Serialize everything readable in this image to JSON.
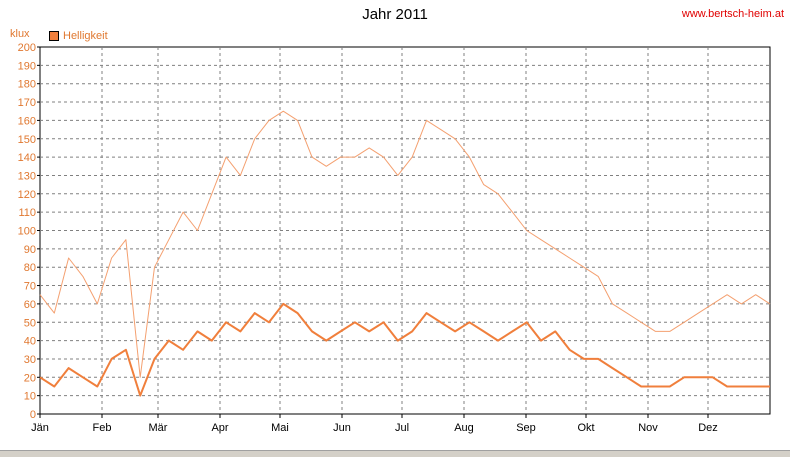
{
  "chart_data": {
    "type": "line",
    "title": "Jahr 2011",
    "site": "www.bertsch-heim.at",
    "unit": "klux",
    "legend": [
      "Helligkeit"
    ],
    "ylim": [
      0,
      200
    ],
    "ytick_step": 10,
    "grid": true,
    "legend_position": "top-left",
    "colors": {
      "series": "#f07f3c",
      "series_max": "#f4a070",
      "tick_labels_y": "#e07830",
      "grid": "#808080"
    },
    "months": [
      "Jän",
      "Feb",
      "Mär",
      "Apr",
      "Mai",
      "Jun",
      "Jul",
      "Aug",
      "Sep",
      "Okt",
      "Nov",
      "Dez"
    ],
    "month_starts": [
      1,
      32,
      60,
      91,
      121,
      152,
      182,
      213,
      244,
      274,
      305,
      335
    ],
    "days_in_year": 365,
    "series": [
      {
        "name": "Helligkeit",
        "role": "daily_max",
        "x_weeks": [
          1,
          2,
          3,
          4,
          5,
          6,
          7,
          8,
          9,
          10,
          11,
          12,
          13,
          14,
          15,
          16,
          17,
          18,
          19,
          20,
          21,
          22,
          23,
          24,
          25,
          26,
          27,
          28,
          29,
          30,
          31,
          32,
          33,
          34,
          35,
          36,
          37,
          38,
          39,
          40,
          41,
          42,
          43,
          44,
          45,
          46,
          47,
          48,
          49,
          50,
          51,
          52
        ],
        "values": [
          65,
          55,
          85,
          75,
          60,
          85,
          95,
          20,
          80,
          95,
          110,
          100,
          120,
          140,
          130,
          150,
          160,
          165,
          160,
          140,
          135,
          140,
          140,
          145,
          140,
          130,
          140,
          160,
          155,
          150,
          140,
          125,
          120,
          110,
          100,
          95,
          90,
          85,
          80,
          75,
          60,
          55,
          50,
          45,
          45,
          50,
          55,
          60,
          65,
          60,
          65,
          60
        ]
      },
      {
        "name": "Helligkeit",
        "role": "daily_mean",
        "x_weeks": [
          1,
          2,
          3,
          4,
          5,
          6,
          7,
          8,
          9,
          10,
          11,
          12,
          13,
          14,
          15,
          16,
          17,
          18,
          19,
          20,
          21,
          22,
          23,
          24,
          25,
          26,
          27,
          28,
          29,
          30,
          31,
          32,
          33,
          34,
          35,
          36,
          37,
          38,
          39,
          40,
          41,
          42,
          43,
          44,
          45,
          46,
          47,
          48,
          49,
          50,
          51,
          52
        ],
        "values": [
          20,
          15,
          25,
          20,
          15,
          30,
          35,
          10,
          30,
          40,
          35,
          45,
          40,
          50,
          45,
          55,
          50,
          60,
          55,
          45,
          40,
          45,
          50,
          45,
          50,
          40,
          45,
          55,
          50,
          45,
          50,
          45,
          40,
          45,
          50,
          40,
          45,
          35,
          30,
          30,
          25,
          20,
          15,
          15,
          15,
          20,
          20,
          20,
          15,
          15,
          15,
          15
        ]
      }
    ]
  }
}
